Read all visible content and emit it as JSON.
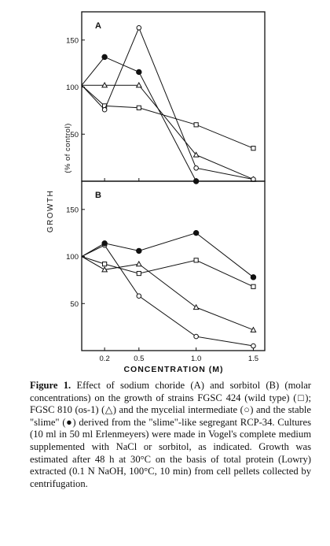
{
  "chart_data": [
    {
      "type": "line",
      "panel_label": "A",
      "ylim": [
        0,
        180
      ],
      "yticks": [
        50,
        100,
        150
      ],
      "xlim": [
        0,
        1.6
      ],
      "ylabel": "GROWTH",
      "ylabel_unit": "(% of control)",
      "series": [
        {
          "marker": "square",
          "x": [
            0,
            0.2,
            0.5,
            1.0,
            1.5
          ],
          "y": [
            102,
            80,
            78,
            60,
            35
          ]
        },
        {
          "marker": "triangle",
          "x": [
            0,
            0.2,
            0.5,
            1.0,
            1.5
          ],
          "y": [
            102,
            102,
            102,
            28,
            2
          ]
        },
        {
          "marker": "open-circle",
          "x": [
            0,
            0.2,
            0.5,
            1.0,
            1.5
          ],
          "y": [
            102,
            76,
            163,
            14,
            2
          ]
        },
        {
          "marker": "filled-circle",
          "x": [
            0,
            0.2,
            0.5,
            1.0
          ],
          "y": [
            102,
            132,
            116,
            0
          ]
        }
      ]
    },
    {
      "type": "line",
      "panel_label": "B",
      "ylim": [
        0,
        180
      ],
      "yticks": [
        50,
        100,
        150
      ],
      "xlim": [
        0,
        1.6
      ],
      "xticks": [
        0.2,
        0.5,
        1.0,
        1.5
      ],
      "xtick_labels": [
        "0.2",
        "0.5",
        "1.0",
        "1.5"
      ],
      "xlabel": "CONCENTRATION (M)",
      "series": [
        {
          "marker": "square",
          "x": [
            0,
            0.2,
            0.5,
            1.0,
            1.5
          ],
          "y": [
            100,
            92,
            82,
            96,
            68
          ]
        },
        {
          "marker": "triangle",
          "x": [
            0,
            0.2,
            0.5,
            1.0,
            1.5
          ],
          "y": [
            100,
            86,
            92,
            46,
            22
          ]
        },
        {
          "marker": "open-circle",
          "x": [
            0,
            0.2,
            0.5,
            1.0,
            1.5
          ],
          "y": [
            100,
            112,
            58,
            15,
            5
          ]
        },
        {
          "marker": "filled-circle",
          "x": [
            0,
            0.2,
            0.5,
            1.0,
            1.5
          ],
          "y": [
            100,
            114,
            106,
            125,
            78
          ]
        }
      ]
    }
  ],
  "caption": {
    "label": "Figure 1.",
    "text": "Effect of sodium choride (A) and sorbitol (B) (molar concentrations) on the growth of strains FGSC 424 (wild type) (□); FGSC 810 (os-1) (△) and the mycelial intermediate (○) and the stable \"slime\" (●) derived from the \"slime\"-like segregant RCP-34. Cultures (10 ml in 50 ml Erlenmeyers) were made in Vogel's complete medium supplemented with NaCl or sorbitol, as indicated. Growth was estimated after 48 h at 30°C on the basis of total protein (Lowry) extracted (0.1 N NaOH, 100°C, 10 min) from cell pellets collected by centrifugation."
  }
}
